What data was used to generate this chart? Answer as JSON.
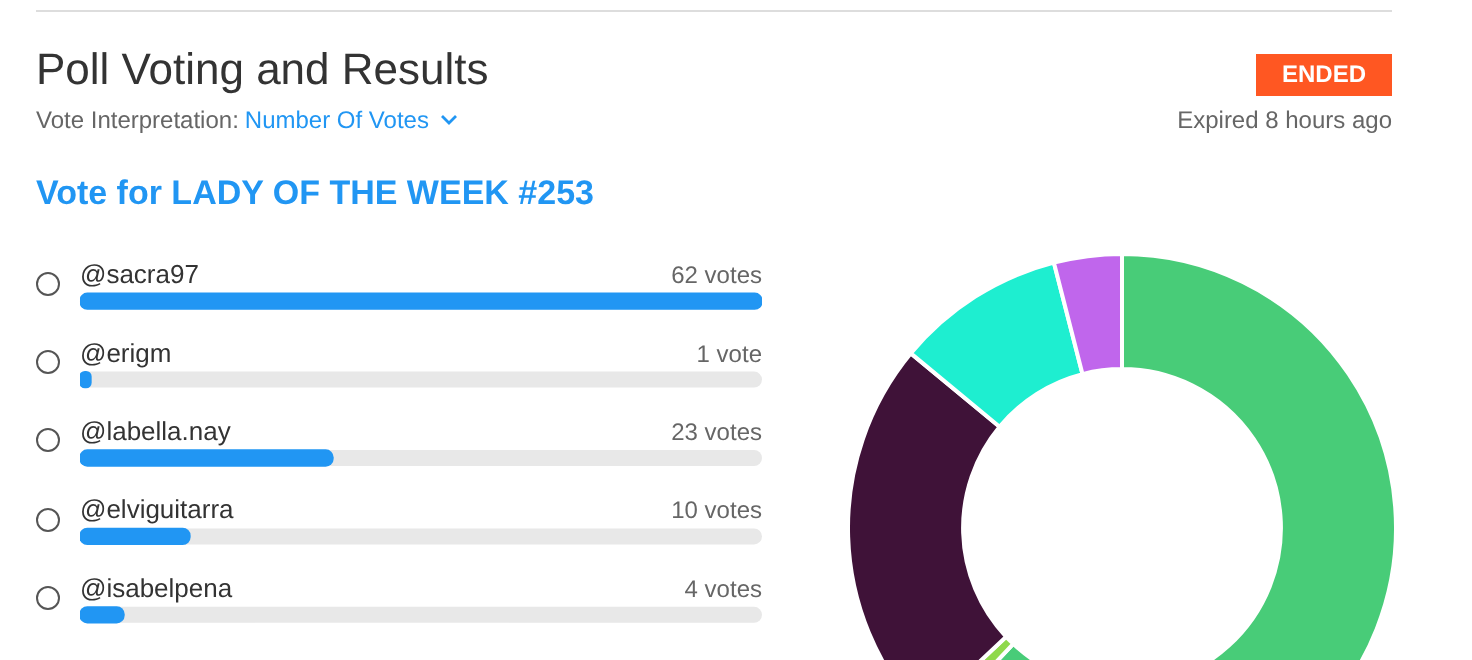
{
  "chart_data": [
    {
      "type": "bar",
      "orientation": "horizontal",
      "title": "Poll Voting and Results",
      "subtitle": "Vote for LADY OF THE WEEK #253",
      "annotations": [
        "Vote Interpretation:",
        "Number Of Votes",
        "ENDED",
        "Expired 8 hours ago"
      ],
      "categories": [
        "@sacra97",
        "@erigm",
        "@labella.nay",
        "@elviguitarra",
        "@isabelpena"
      ],
      "values": [
        62,
        1,
        23,
        10,
        4
      ],
      "value_labels": [
        "62 votes",
        "1 vote",
        "23 votes",
        "10 votes",
        "4 votes"
      ],
      "color": "#2196f3",
      "tick_labels": "y"
    },
    {
      "type": "donut",
      "categories": [
        null,
        null,
        null,
        null,
        null
      ],
      "values": [
        62,
        1,
        23,
        10,
        4
      ],
      "colors": [
        "#48cc78",
        "#8fd94a",
        "#3f1238",
        "#1eeed0",
        "#c066ec"
      ]
    }
  ]
}
